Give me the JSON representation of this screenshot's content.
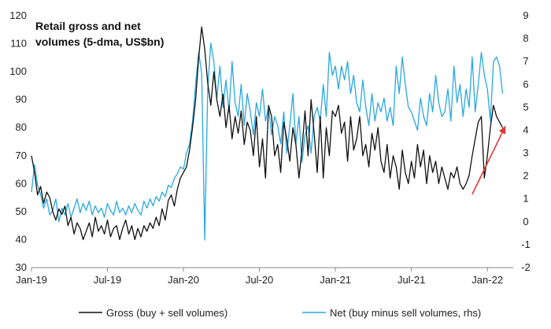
{
  "chart_data": {
    "type": "line",
    "title_lines": [
      "Retail gross and net",
      "volumes (5-dma, US$bn)"
    ],
    "x_ticks": [
      "Jan-19",
      "Jul-19",
      "Jan-20",
      "Jul-20",
      "Jan-21",
      "Jul-21",
      "Jan-22"
    ],
    "x_range": [
      2019.0,
      2022.17
    ],
    "y_left": {
      "min": 30,
      "max": 120,
      "ticks": [
        "30",
        "40",
        "50",
        "60",
        "70",
        "80",
        "90",
        "100",
        "110",
        "120"
      ]
    },
    "y_right": {
      "min": -2,
      "max": 9,
      "ticks": [
        "-2",
        "-1",
        "0",
        "1",
        "2",
        "3",
        "4",
        "5",
        "6",
        "7",
        "8",
        "9"
      ]
    },
    "colors": {
      "gross": "#111111",
      "net": "#29a8e0",
      "arrow": "#e8342f",
      "axis": "#888888"
    },
    "series": [
      {
        "name": "Gross (buy + sell volumes)",
        "axis": "left",
        "color": "#111111",
        "x": [
          2019.0,
          2019.02,
          2019.04,
          2019.06,
          2019.08,
          2019.1,
          2019.12,
          2019.14,
          2019.16,
          2019.18,
          2019.2,
          2019.22,
          2019.24,
          2019.26,
          2019.28,
          2019.3,
          2019.32,
          2019.34,
          2019.36,
          2019.38,
          2019.4,
          2019.42,
          2019.44,
          2019.46,
          2019.48,
          2019.5,
          2019.52,
          2019.54,
          2019.56,
          2019.58,
          2019.6,
          2019.62,
          2019.64,
          2019.66,
          2019.68,
          2019.7,
          2019.72,
          2019.74,
          2019.76,
          2019.78,
          2019.8,
          2019.82,
          2019.84,
          2019.86,
          2019.88,
          2019.9,
          2019.92,
          2019.94,
          2019.96,
          2019.98,
          2020.0,
          2020.02,
          2020.04,
          2020.06,
          2020.08,
          2020.1,
          2020.12,
          2020.14,
          2020.16,
          2020.18,
          2020.2,
          2020.22,
          2020.24,
          2020.26,
          2020.28,
          2020.3,
          2020.32,
          2020.34,
          2020.36,
          2020.38,
          2020.4,
          2020.42,
          2020.44,
          2020.46,
          2020.48,
          2020.5,
          2020.52,
          2020.54,
          2020.56,
          2020.58,
          2020.6,
          2020.62,
          2020.64,
          2020.66,
          2020.68,
          2020.7,
          2020.72,
          2020.74,
          2020.76,
          2020.78,
          2020.8,
          2020.82,
          2020.84,
          2020.86,
          2020.88,
          2020.9,
          2020.92,
          2020.94,
          2020.96,
          2020.98,
          2021.0,
          2021.02,
          2021.04,
          2021.06,
          2021.08,
          2021.1,
          2021.12,
          2021.14,
          2021.16,
          2021.18,
          2021.2,
          2021.22,
          2021.24,
          2021.26,
          2021.28,
          2021.3,
          2021.32,
          2021.34,
          2021.36,
          2021.38,
          2021.4,
          2021.42,
          2021.44,
          2021.46,
          2021.48,
          2021.5,
          2021.52,
          2021.54,
          2021.56,
          2021.58,
          2021.6,
          2021.62,
          2021.64,
          2021.66,
          2021.68,
          2021.7,
          2021.72,
          2021.74,
          2021.76,
          2021.78,
          2021.8,
          2021.82,
          2021.84,
          2021.86,
          2021.88,
          2021.9,
          2021.92,
          2021.94,
          2021.96,
          2021.98,
          2022.0,
          2022.02,
          2022.04,
          2022.06,
          2022.08,
          2022.1
        ],
        "values": [
          70,
          64,
          56,
          59,
          53,
          57,
          55,
          50,
          47,
          51,
          49,
          52,
          45,
          48,
          42,
          46,
          44,
          40,
          43,
          46,
          41,
          48,
          43,
          45,
          42,
          47,
          41,
          44,
          45,
          40,
          44,
          47,
          42,
          45,
          40,
          44,
          41,
          45,
          43,
          46,
          44,
          48,
          45,
          51,
          47,
          54,
          56,
          52,
          58,
          62,
          64,
          66,
          72,
          80,
          90,
          105,
          116,
          108,
          96,
          88,
          100,
          90,
          84,
          92,
          80,
          88,
          76,
          84,
          78,
          86,
          74,
          82,
          79,
          70,
          84,
          66,
          76,
          62,
          88,
          84,
          70,
          74,
          64,
          82,
          76,
          68,
          80,
          74,
          62,
          72,
          86,
          70,
          90,
          78,
          64,
          84,
          62,
          80,
          70,
          86,
          84,
          88,
          78,
          82,
          68,
          84,
          72,
          76,
          84,
          70,
          74,
          66,
          78,
          72,
          80,
          68,
          64,
          74,
          62,
          70,
          66,
          58,
          72,
          64,
          60,
          68,
          62,
          74,
          66,
          72,
          60,
          70,
          64,
          68,
          60,
          66,
          62,
          58,
          64,
          62,
          66,
          60,
          58,
          60,
          63,
          70,
          76,
          82,
          84,
          62,
          70,
          80,
          88,
          84,
          82,
          80
        ]
      },
      {
        "name": "Net (buy minus sell volumes, rhs)",
        "axis": "right",
        "color": "#29a8e0",
        "x": [
          2019.0,
          2019.02,
          2019.04,
          2019.06,
          2019.08,
          2019.1,
          2019.12,
          2019.14,
          2019.16,
          2019.18,
          2019.2,
          2019.22,
          2019.24,
          2019.26,
          2019.28,
          2019.3,
          2019.32,
          2019.34,
          2019.36,
          2019.38,
          2019.4,
          2019.42,
          2019.44,
          2019.46,
          2019.48,
          2019.5,
          2019.52,
          2019.54,
          2019.56,
          2019.58,
          2019.6,
          2019.62,
          2019.64,
          2019.66,
          2019.68,
          2019.7,
          2019.72,
          2019.74,
          2019.76,
          2019.78,
          2019.8,
          2019.82,
          2019.84,
          2019.86,
          2019.88,
          2019.9,
          2019.92,
          2019.94,
          2019.96,
          2019.98,
          2020.0,
          2020.02,
          2020.04,
          2020.06,
          2020.08,
          2020.1,
          2020.12,
          2020.14,
          2020.16,
          2020.18,
          2020.2,
          2020.22,
          2020.24,
          2020.26,
          2020.28,
          2020.3,
          2020.32,
          2020.34,
          2020.36,
          2020.38,
          2020.4,
          2020.42,
          2020.44,
          2020.46,
          2020.48,
          2020.5,
          2020.52,
          2020.54,
          2020.56,
          2020.58,
          2020.6,
          2020.62,
          2020.64,
          2020.66,
          2020.68,
          2020.7,
          2020.72,
          2020.74,
          2020.76,
          2020.78,
          2020.8,
          2020.82,
          2020.84,
          2020.86,
          2020.88,
          2020.9,
          2020.92,
          2020.94,
          2020.96,
          2020.98,
          2021.0,
          2021.02,
          2021.04,
          2021.06,
          2021.08,
          2021.1,
          2021.12,
          2021.14,
          2021.16,
          2021.18,
          2021.2,
          2021.22,
          2021.24,
          2021.26,
          2021.28,
          2021.3,
          2021.32,
          2021.34,
          2021.36,
          2021.38,
          2021.4,
          2021.42,
          2021.44,
          2021.46,
          2021.48,
          2021.5,
          2021.52,
          2021.54,
          2021.56,
          2021.58,
          2021.6,
          2021.62,
          2021.64,
          2021.66,
          2021.68,
          2021.7,
          2021.72,
          2021.74,
          2021.76,
          2021.78,
          2021.8,
          2021.82,
          2021.84,
          2021.86,
          2021.88,
          2021.9,
          2021.92,
          2021.94,
          2021.96,
          2021.98,
          2022.0,
          2022.02,
          2022.04,
          2022.06,
          2022.08,
          2022.1
        ],
        "values": [
          1.3,
          2.5,
          1.6,
          1.2,
          0.6,
          1.0,
          0.3,
          0.5,
          1.0,
          0.0,
          0.6,
          0.3,
          0.8,
          0.2,
          0.6,
          1.0,
          0.4,
          0.8,
          0.5,
          0.9,
          0.3,
          0.7,
          0.4,
          0.6,
          0.2,
          0.8,
          0.5,
          0.3,
          0.9,
          0.4,
          0.6,
          0.3,
          0.7,
          0.4,
          0.8,
          0.5,
          0.3,
          0.9,
          0.6,
          1.0,
          0.7,
          1.1,
          0.9,
          1.3,
          1.1,
          1.6,
          1.5,
          1.9,
          2.1,
          2.4,
          2.3,
          3.0,
          3.4,
          4.4,
          6.0,
          7.4,
          6.5,
          -0.8,
          5.8,
          7.8,
          7.0,
          5.4,
          6.8,
          5.0,
          6.2,
          4.8,
          7.0,
          5.2,
          4.6,
          6.0,
          4.2,
          5.6,
          4.8,
          3.8,
          5.2,
          4.6,
          5.8,
          4.4,
          5.0,
          3.8,
          4.6,
          4.2,
          3.4,
          4.8,
          3.0,
          4.2,
          5.6,
          3.4,
          4.6,
          2.6,
          3.8,
          4.2,
          3.0,
          4.6,
          5.0,
          4.4,
          6.0,
          4.6,
          7.4,
          6.4,
          6.8,
          5.8,
          6.8,
          6.2,
          7.0,
          5.6,
          6.4,
          5.2,
          4.8,
          6.2,
          5.0,
          4.2,
          5.6,
          4.4,
          5.2,
          4.8,
          5.4,
          4.4,
          5.0,
          4.2,
          6.8,
          5.6,
          7.2,
          6.0,
          5.0,
          4.8,
          4.4,
          4.0,
          5.4,
          4.6,
          4.2,
          5.6,
          4.8,
          6.4,
          5.2,
          4.6,
          4.8,
          5.8,
          4.4,
          6.8,
          5.2,
          6.0,
          4.6,
          5.8,
          5.0,
          7.2,
          4.8,
          6.0,
          7.4,
          6.4,
          5.8,
          4.4,
          7.0,
          7.2,
          6.8,
          5.6
        ]
      }
    ],
    "arrow": {
      "from": {
        "x": 2021.9,
        "y": 1.2
      },
      "to": {
        "x": 2022.12,
        "y": 4.2
      },
      "axis": "right"
    }
  }
}
